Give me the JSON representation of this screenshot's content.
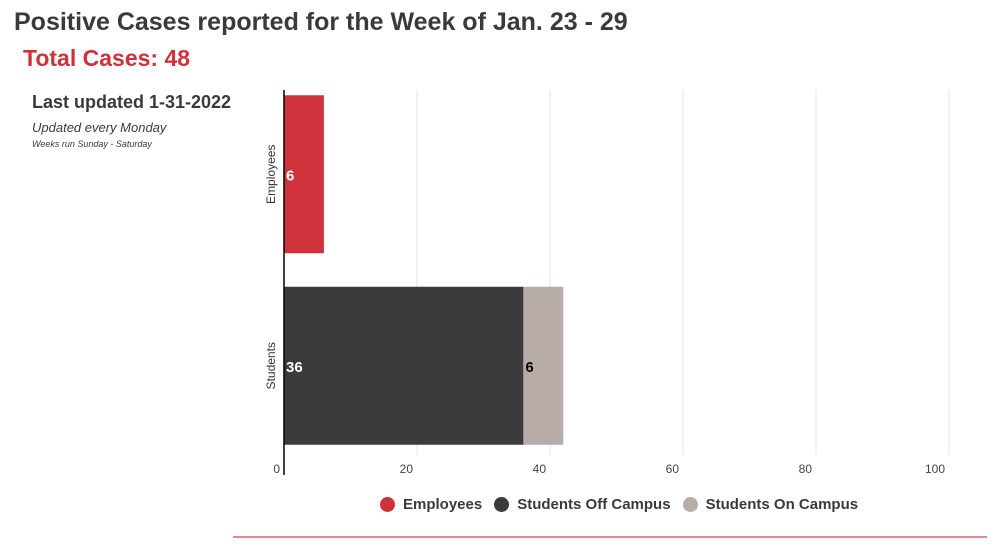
{
  "header": {
    "title": "Positive Cases reported for the Week of Jan. 23 - 29",
    "total": "Total Cases: 48"
  },
  "notes": {
    "updated": "Last updated 1-31-2022",
    "frequency": "Updated every Monday",
    "weeks": "Weeks run Sunday - Saturday"
  },
  "chart_data": {
    "type": "bar",
    "orientation": "horizontal",
    "stacked": true,
    "categories": [
      "Employees",
      "Students"
    ],
    "series": [
      {
        "name": "Employees",
        "values": [
          6,
          0
        ],
        "color": "#d0323c",
        "label_color": "#ffffff"
      },
      {
        "name": "Students Off Campus",
        "values": [
          0,
          36
        ],
        "color": "#3b3b3b",
        "label_color": "#ffffff"
      },
      {
        "name": "Students On Campus",
        "values": [
          0,
          6
        ],
        "color": "#b8aca8",
        "label_color": "#000000"
      }
    ],
    "xlim": [
      0,
      100
    ],
    "x_ticks": [
      "0",
      "20",
      "40",
      "60",
      "80",
      "100"
    ],
    "grid": true,
    "legend": "bottom"
  },
  "colors": {
    "accent": "#d0323c",
    "text": "#3a3a3a",
    "grid": "#e6e6e6",
    "rule": "#e58a8a"
  }
}
